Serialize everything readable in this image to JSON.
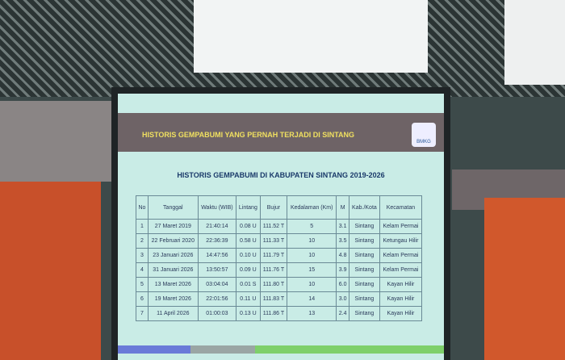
{
  "header": {
    "title": "HISTORIS GEMPABUMI YANG PERNAH TERJADI DI SINTANG",
    "logo": "BMKG"
  },
  "table": {
    "title": "HISTORIS GEMPABUMI DI KABUPATEN SINTANG 2019-2026",
    "columns": [
      "No",
      "Tanggal",
      "Waktu (WIB)",
      "Lintang",
      "Bujur",
      "Kedalaman (Km)",
      "M",
      "Kab./Kota",
      "Kecamatan"
    ],
    "rows": [
      [
        "1",
        "27 Maret 2019",
        "21:40:14",
        "0.08 U",
        "111.52 T",
        "5",
        "3.1",
        "Sintang",
        "Kelam Permai"
      ],
      [
        "2",
        "22 Februari 2020",
        "22:36:39",
        "0.58 U",
        "111.33 T",
        "10",
        "3.5",
        "Sintang",
        "Ketungau Hilir"
      ],
      [
        "3",
        "23 Januari 2026",
        "14:47:56",
        "0.10 U",
        "111.79 T",
        "10",
        "4.8",
        "Sintang",
        "Kelam Permai"
      ],
      [
        "4",
        "31 Januari 2026",
        "13:50:57",
        "0.09 U",
        "111.76 T",
        "15",
        "3.9",
        "Sintang",
        "Kelam Permai"
      ],
      [
        "5",
        "13 Maret 2026",
        "03:04:04",
        "0.01 S",
        "111.80 T",
        "10",
        "6.0",
        "Sintang",
        "Kayan Hilir"
      ],
      [
        "6",
        "19 Maret 2026",
        "22:01:56",
        "0.11 U",
        "111.83 T",
        "14",
        "3.0",
        "Sintang",
        "Kayan Hilir"
      ],
      [
        "7",
        "11 April 2026",
        "01:00:03",
        "0.13 U",
        "111.86 T",
        "13",
        "2.4",
        "Sintang",
        "Kayan Hilir"
      ]
    ]
  }
}
